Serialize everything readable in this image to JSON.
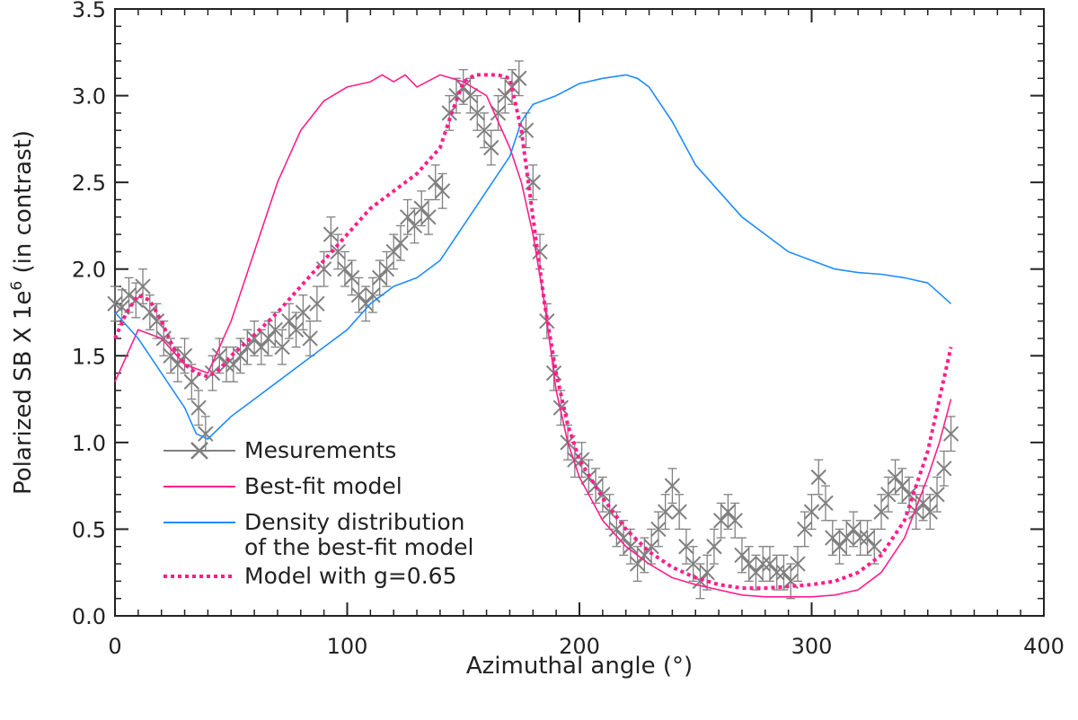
{
  "chart_data": {
    "type": "line",
    "title": "",
    "xlabel": "Azimuthal angle (°)",
    "ylabel": "Polarized SB X 1e6 (in contrast)",
    "xlim": [
      0,
      400
    ],
    "ylim": [
      0,
      3.5
    ],
    "xticks": [
      "0",
      "100",
      "200",
      "300",
      "400"
    ],
    "yticks": [
      "0.0",
      "0.5",
      "1.0",
      "1.5",
      "2.0",
      "2.5",
      "3.0",
      "3.5"
    ],
    "grid": false,
    "legend_position": "bottom-left",
    "series": [
      {
        "name": "Mesurements",
        "style": "markers-x-with-errorbars",
        "color": "#808080",
        "error": 0.1,
        "x": [
          0,
          3,
          6,
          9,
          12,
          15,
          18,
          21,
          24,
          27,
          30,
          33,
          36,
          39,
          42,
          45,
          48,
          51,
          54,
          57,
          60,
          63,
          66,
          69,
          72,
          75,
          78,
          81,
          84,
          87,
          90,
          93,
          96,
          99,
          102,
          105,
          108,
          111,
          114,
          117,
          120,
          123,
          126,
          129,
          132,
          135,
          138,
          141,
          144,
          147,
          150,
          153,
          156,
          159,
          162,
          165,
          168,
          171,
          174,
          177,
          180,
          183,
          186,
          189,
          192,
          195,
          198,
          201,
          204,
          207,
          210,
          213,
          216,
          219,
          222,
          225,
          228,
          231,
          234,
          237,
          240,
          243,
          246,
          249,
          252,
          255,
          258,
          261,
          264,
          267,
          270,
          273,
          276,
          279,
          282,
          285,
          288,
          291,
          294,
          297,
          300,
          303,
          306,
          309,
          312,
          315,
          318,
          321,
          324,
          327,
          330,
          333,
          336,
          339,
          342,
          345,
          348,
          351,
          354,
          357,
          360
        ],
        "y": [
          1.8,
          1.78,
          1.85,
          1.82,
          1.9,
          1.75,
          1.7,
          1.6,
          1.5,
          1.45,
          1.5,
          1.35,
          1.2,
          1.05,
          1.4,
          1.5,
          1.45,
          1.45,
          1.5,
          1.55,
          1.6,
          1.55,
          1.6,
          1.65,
          1.55,
          1.7,
          1.65,
          1.75,
          1.6,
          1.8,
          2.0,
          2.2,
          2.1,
          2.0,
          1.95,
          1.85,
          1.8,
          1.85,
          1.95,
          2.0,
          2.1,
          2.15,
          2.3,
          2.25,
          2.35,
          2.3,
          2.5,
          2.45,
          2.9,
          3.0,
          3.05,
          3.0,
          2.9,
          2.8,
          2.7,
          2.9,
          3.0,
          3.05,
          3.1,
          2.8,
          2.5,
          2.1,
          1.7,
          1.4,
          1.2,
          1.0,
          0.9,
          0.9,
          0.8,
          0.75,
          0.7,
          0.6,
          0.5,
          0.45,
          0.4,
          0.3,
          0.35,
          0.4,
          0.5,
          0.6,
          0.75,
          0.6,
          0.4,
          0.3,
          0.2,
          0.25,
          0.4,
          0.55,
          0.6,
          0.55,
          0.35,
          0.3,
          0.25,
          0.3,
          0.3,
          0.25,
          0.25,
          0.2,
          0.3,
          0.5,
          0.6,
          0.8,
          0.65,
          0.45,
          0.4,
          0.45,
          0.5,
          0.45,
          0.45,
          0.4,
          0.6,
          0.7,
          0.8,
          0.75,
          0.7,
          0.6,
          0.65,
          0.6,
          0.7,
          0.85,
          1.05
        ]
      },
      {
        "name": "Best-fit model",
        "style": "solid",
        "color": "#ff1e8c",
        "x": [
          0,
          10,
          20,
          30,
          40,
          50,
          60,
          70,
          80,
          90,
          100,
          110,
          115,
          120,
          125,
          130,
          140,
          150,
          160,
          165,
          170,
          175,
          180,
          185,
          190,
          195,
          200,
          210,
          220,
          230,
          240,
          250,
          260,
          270,
          280,
          290,
          300,
          310,
          320,
          330,
          340,
          350,
          355,
          360
        ],
        "y": [
          1.35,
          1.65,
          1.6,
          1.45,
          1.4,
          1.7,
          2.1,
          2.5,
          2.8,
          2.97,
          3.05,
          3.08,
          3.12,
          3.08,
          3.12,
          3.05,
          3.12,
          3.08,
          3.0,
          2.85,
          2.7,
          2.5,
          2.2,
          1.8,
          1.3,
          1.0,
          0.8,
          0.55,
          0.4,
          0.3,
          0.22,
          0.18,
          0.15,
          0.12,
          0.11,
          0.11,
          0.11,
          0.12,
          0.15,
          0.25,
          0.45,
          0.8,
          1.0,
          1.25
        ]
      },
      {
        "name": "Density distribution of the best-fit model",
        "style": "solid",
        "color": "#1e8cff",
        "x": [
          0,
          10,
          20,
          30,
          35,
          40,
          50,
          60,
          70,
          80,
          90,
          100,
          110,
          120,
          130,
          140,
          150,
          160,
          170,
          175,
          180,
          190,
          200,
          210,
          220,
          225,
          230,
          240,
          250,
          260,
          270,
          280,
          290,
          300,
          310,
          320,
          330,
          340,
          350,
          360
        ],
        "y": [
          1.75,
          1.6,
          1.4,
          1.2,
          1.05,
          1.02,
          1.15,
          1.25,
          1.35,
          1.45,
          1.55,
          1.65,
          1.8,
          1.9,
          1.95,
          2.05,
          2.25,
          2.45,
          2.65,
          2.85,
          2.95,
          3.0,
          3.07,
          3.1,
          3.12,
          3.1,
          3.05,
          2.85,
          2.6,
          2.45,
          2.3,
          2.2,
          2.1,
          2.05,
          2.0,
          1.98,
          1.97,
          1.95,
          1.92,
          1.8
        ]
      },
      {
        "name": "Model with g=0.65",
        "style": "dotted",
        "color": "#ff1e8c",
        "x": [
          0,
          5,
          10,
          15,
          20,
          25,
          30,
          35,
          40,
          45,
          50,
          60,
          70,
          80,
          90,
          100,
          110,
          120,
          130,
          140,
          145,
          150,
          155,
          160,
          165,
          170,
          175,
          180,
          185,
          190,
          195,
          200,
          210,
          220,
          230,
          240,
          250,
          260,
          270,
          280,
          290,
          300,
          310,
          320,
          330,
          340,
          350,
          355,
          360
        ],
        "y": [
          1.6,
          1.75,
          1.85,
          1.82,
          1.7,
          1.55,
          1.45,
          1.4,
          1.38,
          1.42,
          1.5,
          1.62,
          1.75,
          1.9,
          2.05,
          2.2,
          2.35,
          2.45,
          2.55,
          2.7,
          2.9,
          3.08,
          3.12,
          3.12,
          3.12,
          3.1,
          2.8,
          2.3,
          1.8,
          1.4,
          1.1,
          0.9,
          0.68,
          0.5,
          0.37,
          0.28,
          0.22,
          0.18,
          0.16,
          0.16,
          0.17,
          0.18,
          0.2,
          0.25,
          0.35,
          0.55,
          0.95,
          1.25,
          1.55
        ]
      }
    ]
  }
}
